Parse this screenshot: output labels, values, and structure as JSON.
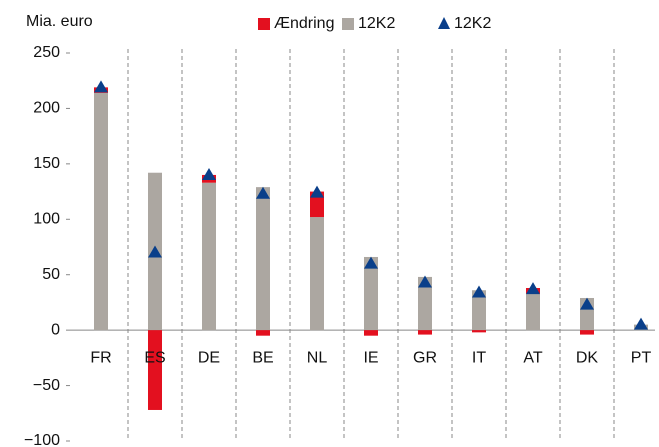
{
  "chart_data": {
    "type": "bar",
    "y_label": "Mia. euro",
    "categories": [
      "FR",
      "ES",
      "DE",
      "BE",
      "NL",
      "IE",
      "GR",
      "IT",
      "AT",
      "DK",
      "PT"
    ],
    "series": [
      {
        "name": "Ændring",
        "color": "#e3101f",
        "values": [
          5,
          -72,
          7,
          -5,
          23,
          -5,
          -4,
          -2,
          5,
          -4,
          0
        ]
      },
      {
        "name": "12K2",
        "color": "#aca7a1",
        "values": [
          214,
          142,
          133,
          129,
          102,
          66,
          48,
          36,
          33,
          29,
          5
        ]
      },
      {
        "name": "12K2",
        "color": "#0a3f8a",
        "marker": "triangle",
        "values": [
          219,
          70,
          140,
          123,
          124,
          60,
          43,
          34,
          37,
          23,
          5
        ]
      }
    ],
    "ylim": [
      -100,
      250
    ],
    "yticks": [
      {
        "value": -100,
        "label": "−100"
      },
      {
        "value": -50,
        "label": "−50"
      },
      0,
      50,
      100,
      150,
      200,
      250
    ],
    "grid": true
  }
}
